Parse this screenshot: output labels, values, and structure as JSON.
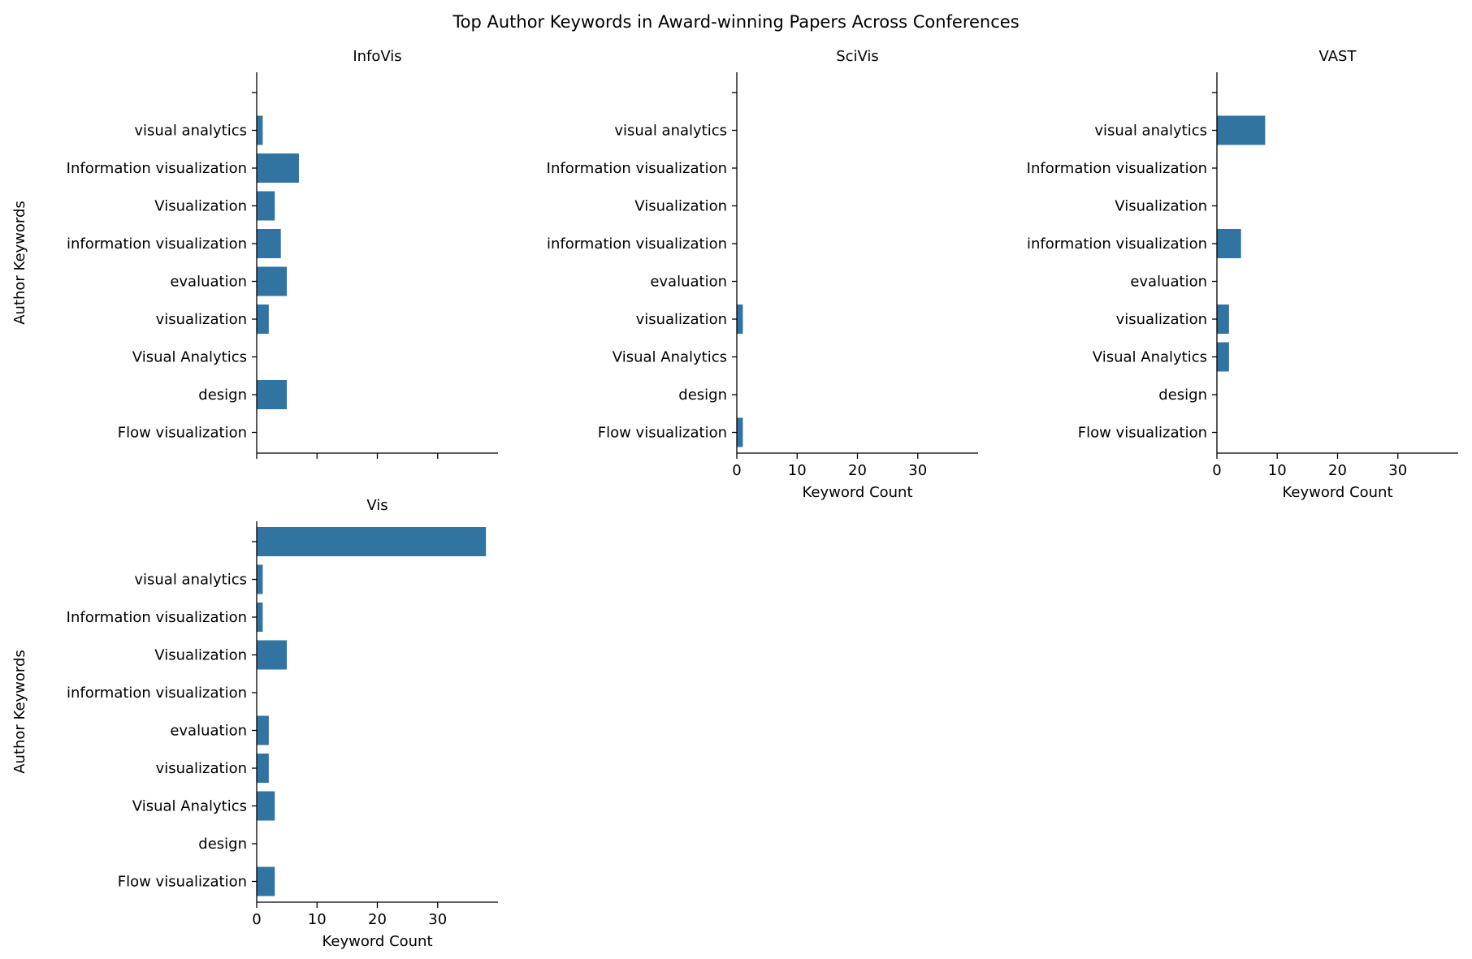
{
  "title": "Top Author Keywords in Award-winning Papers Across Conferences",
  "bar_color": "#3274a1",
  "chart_data": [
    {
      "type": "bar",
      "orientation": "horizontal",
      "panel": "InfoVis",
      "categories": [
        "",
        "visual analytics",
        "Information visualization",
        "Visualization",
        "information visualization",
        "evaluation",
        "visualization",
        "Visual Analytics",
        "design",
        "Flow visualization"
      ],
      "values": [
        0,
        1,
        7,
        3,
        4,
        5,
        2,
        0,
        5,
        0
      ],
      "xlabel": "",
      "ylabel": "Author Keywords",
      "xlim": [
        0,
        40
      ],
      "xticks": [],
      "show_xtick_labels": false
    },
    {
      "type": "bar",
      "orientation": "horizontal",
      "panel": "SciVis",
      "categories": [
        "",
        "visual analytics",
        "Information visualization",
        "Visualization",
        "information visualization",
        "evaluation",
        "visualization",
        "Visual Analytics",
        "design",
        "Flow visualization"
      ],
      "values": [
        0,
        0,
        0,
        0,
        0,
        0,
        1,
        0,
        0,
        1
      ],
      "xlabel": "Keyword Count",
      "ylabel": "",
      "xlim": [
        0,
        40
      ],
      "xticks": [
        "0",
        "10",
        "20",
        "30"
      ],
      "show_xtick_labels": true
    },
    {
      "type": "bar",
      "orientation": "horizontal",
      "panel": "VAST",
      "categories": [
        "",
        "visual analytics",
        "Information visualization",
        "Visualization",
        "information visualization",
        "evaluation",
        "visualization",
        "Visual Analytics",
        "design",
        "Flow visualization"
      ],
      "values": [
        0,
        8,
        0,
        0,
        4,
        0,
        2,
        2,
        0,
        0
      ],
      "xlabel": "Keyword Count",
      "ylabel": "",
      "xlim": [
        0,
        40
      ],
      "xticks": [
        "0",
        "10",
        "20",
        "30"
      ],
      "show_xtick_labels": true
    },
    {
      "type": "bar",
      "orientation": "horizontal",
      "panel": "Vis",
      "categories": [
        "",
        "visual analytics",
        "Information visualization",
        "Visualization",
        "information visualization",
        "evaluation",
        "visualization",
        "Visual Analytics",
        "design",
        "Flow visualization"
      ],
      "values": [
        38,
        1,
        1,
        5,
        0,
        2,
        2,
        3,
        0,
        3
      ],
      "xlabel": "Keyword Count",
      "ylabel": "Author Keywords",
      "xlim": [
        0,
        40
      ],
      "xticks": [
        "0",
        "10",
        "20",
        "30"
      ],
      "show_xtick_labels": true
    }
  ]
}
